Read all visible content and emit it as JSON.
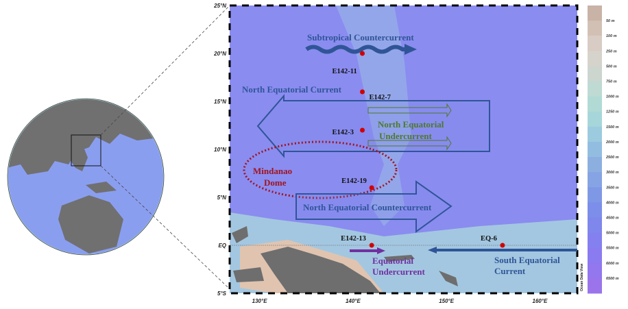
{
  "map": {
    "extent": {
      "lon": [
        126.8,
        164
      ],
      "lat": [
        -5,
        25
      ]
    },
    "lat_ticks": [
      "25°N",
      "20°N",
      "15°N",
      "10°N",
      "5°N",
      "EQ",
      "5°S"
    ],
    "lat_values": [
      25,
      20,
      15,
      10,
      5,
      0,
      -5
    ],
    "lon_ticks": [
      "130°E",
      "140°E",
      "150°E",
      "160°E"
    ],
    "lon_values": [
      130,
      140,
      150,
      160
    ],
    "stations": [
      {
        "name": "E142-11",
        "lon": 141,
        "lat": 20
      },
      {
        "name": "E142-7",
        "lon": 141,
        "lat": 16
      },
      {
        "name": "E142-3",
        "lon": 141,
        "lat": 12
      },
      {
        "name": "E142-19",
        "lon": 142,
        "lat": 6
      },
      {
        "name": "E142-13",
        "lon": 142,
        "lat": 0
      },
      {
        "name": "EQ-6",
        "lon": 156,
        "lat": 0
      }
    ],
    "currents": {
      "stcc": "Subtropical Countercurrent",
      "nec": "North Equatorial Current",
      "neuc1": "North Equatorial",
      "neuc2": "Undercurrent",
      "md1": "Mindanao",
      "md2": "Dome",
      "necc": "North Equatorial Countercurrent",
      "euc1": "Equatorial",
      "euc2": "Undercurrent",
      "sec1": "South Equatorial",
      "sec2": "Current"
    },
    "colors": {
      "ocean": "#8a8cf0",
      "shelf": "#a9d6dc",
      "land": "#6e6e6e",
      "station": "#d00000",
      "current_blue": "#2f5597",
      "neuc_green": "#4e7a2a",
      "dome_red": "#a0141e",
      "euc_purple": "#7030a0"
    },
    "watermark": "Ocean Data View"
  },
  "colorbar": {
    "labels": [
      "50 m",
      "100 m",
      "250 m",
      "500 m",
      "750 m",
      "1000 m",
      "1250 m",
      "1500 m",
      "2000 m",
      "2500 m",
      "3000 m",
      "3500 m",
      "4000 m",
      "4500 m",
      "5000 m",
      "5500 m",
      "6000 m",
      "6500 m"
    ],
    "colors": [
      "#c9b3a6",
      "#d3c0b5",
      "#d8ccc4",
      "#d6d3cc",
      "#cdd5cf",
      "#bedad3",
      "#b1dad5",
      "#a7d6da",
      "#9ccbdf",
      "#93bde0",
      "#8cafe0",
      "#86a3e3",
      "#7f98e6",
      "#7c8eea",
      "#7f86ec",
      "#8480ef",
      "#8b7bf0",
      "#9277ef",
      "#9b74ec"
    ]
  }
}
